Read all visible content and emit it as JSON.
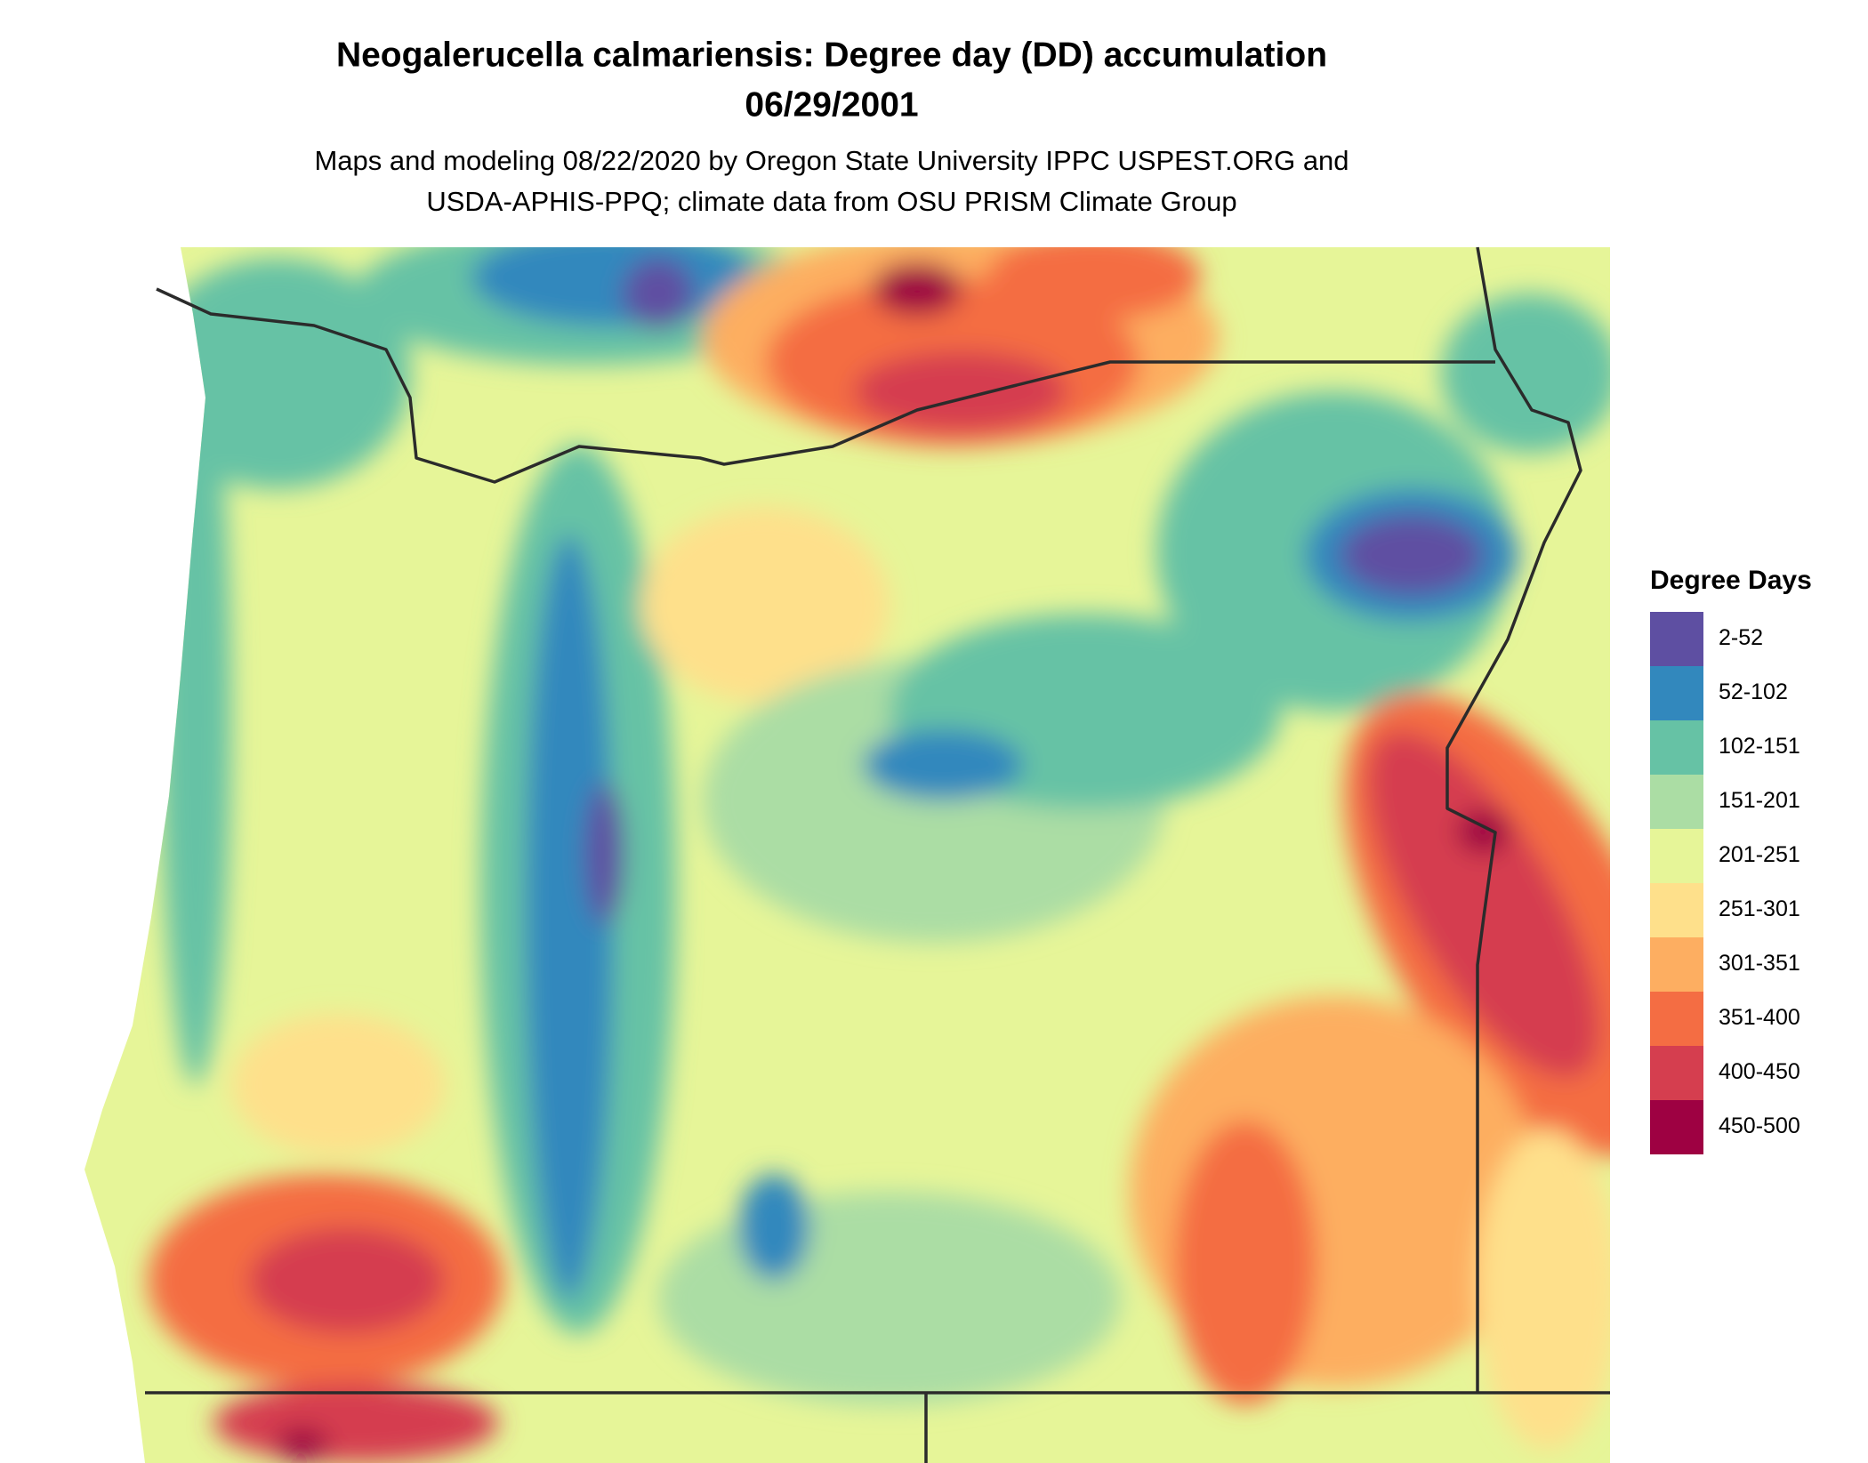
{
  "header": {
    "title": [
      "Neogalerucella calmariensis: Degree day (DD) accumulation",
      "06/29/2001"
    ],
    "subtitle": [
      "Maps and modeling 08/22/2020 by Oregon State University IPPC USPEST.ORG and",
      "USDA-APHIS-PPQ; climate data from OSU PRISM Climate Group"
    ]
  },
  "legend": {
    "title": "Degree Days",
    "items": [
      {
        "label": "2-52",
        "color": "#5e4fa2"
      },
      {
        "label": "52-102",
        "color": "#3288bd"
      },
      {
        "label": "102-151",
        "color": "#66c2a5"
      },
      {
        "label": "151-201",
        "color": "#abdda4"
      },
      {
        "label": "201-251",
        "color": "#e6f598"
      },
      {
        "label": "251-301",
        "color": "#fee08b"
      },
      {
        "label": "301-351",
        "color": "#fdae61"
      },
      {
        "label": "351-400",
        "color": "#f46d43"
      },
      {
        "label": "400-450",
        "color": "#d53e4f"
      },
      {
        "label": "450-500",
        "color": "#9e0142"
      }
    ]
  }
}
